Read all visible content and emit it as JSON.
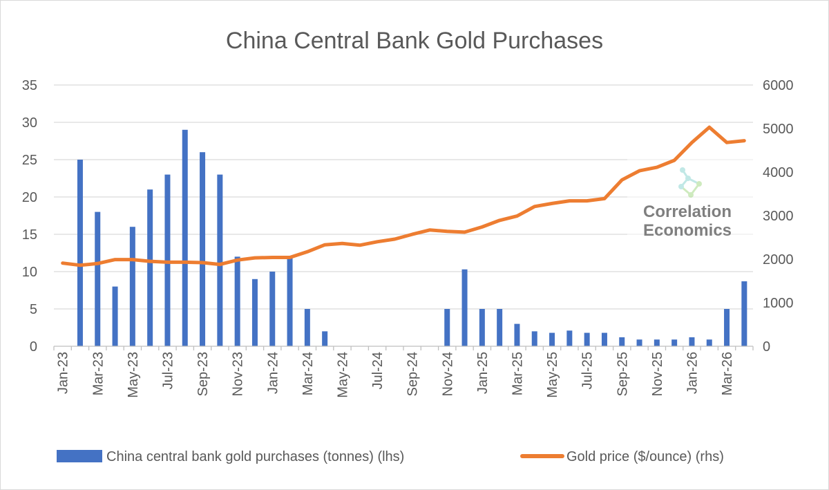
{
  "chart_data": {
    "type": "bar+line",
    "title": "China Central Bank Gold Purchases",
    "x": [
      "Jan-23",
      "Feb-23",
      "Mar-23",
      "Apr-23",
      "May-23",
      "Jun-23",
      "Jul-23",
      "Aug-23",
      "Sep-23",
      "Oct-23",
      "Nov-23",
      "Dec-23",
      "Jan-24",
      "Feb-24",
      "Mar-24",
      "Apr-24",
      "May-24",
      "Jun-24",
      "Jul-24",
      "Aug-24",
      "Sep-24",
      "Oct-24",
      "Nov-24",
      "Dec-24",
      "Jan-25",
      "Feb-25",
      "Mar-25",
      "Apr-25",
      "May-25",
      "Jun-25",
      "Jul-25",
      "Aug-25",
      "Sep-25",
      "Oct-25",
      "Nov-25",
      "Dec-25",
      "Jan-26",
      "Feb-26",
      "Mar-26",
      "Apr-26"
    ],
    "x_tick_labels": [
      "Jan-23",
      "Mar-23",
      "May-23",
      "Jul-23",
      "Sep-23",
      "Nov-23",
      "Jan-24",
      "Mar-24",
      "May-24",
      "Jul-24",
      "Sep-24",
      "Nov-24",
      "Jan-25",
      "Mar-25",
      "May-25",
      "Jul-25",
      "Sep-25",
      "Nov-25",
      "Jan-26",
      "Mar-26"
    ],
    "series": [
      {
        "name": "China central bank gold purchases (tonnes) (lhs)",
        "type": "bar",
        "axis": "left",
        "color": "#4472C4",
        "values": [
          0,
          25,
          18,
          8,
          16,
          21,
          23,
          29,
          26,
          23,
          12,
          9,
          10,
          12,
          5,
          2,
          0,
          0,
          0,
          0,
          0,
          0,
          5,
          10.3,
          5,
          5,
          3,
          2,
          1.8,
          2.1,
          1.8,
          1.8,
          1.2,
          0.9,
          0.9,
          0.9,
          1.2,
          0.9,
          5,
          8.7
        ]
      },
      {
        "name": "Gold price ($/ounce) (rhs)",
        "type": "line",
        "axis": "right",
        "color": "#ED7D31",
        "values": [
          1910,
          1860,
          1900,
          1990,
          1990,
          1950,
          1930,
          1930,
          1920,
          1880,
          1980,
          2030,
          2040,
          2040,
          2170,
          2330,
          2360,
          2320,
          2400,
          2460,
          2570,
          2670,
          2640,
          2620,
          2740,
          2890,
          2990,
          3210,
          3280,
          3340,
          3340,
          3390,
          3820,
          4030,
          4110,
          4270,
          4680,
          5030,
          4680,
          4720
        ]
      }
    ],
    "y_left": {
      "min": 0,
      "max": 35,
      "ticks": [
        0,
        5,
        10,
        15,
        20,
        25,
        30,
        35
      ]
    },
    "y_right": {
      "min": 0,
      "max": 6000,
      "ticks": [
        0,
        1000,
        2000,
        3000,
        4000,
        5000,
        6000
      ]
    },
    "grid": true,
    "legend_position": "bottom"
  },
  "watermark": {
    "line1": "Correlation",
    "line2": "Economics",
    "icon": "molecule-logo-icon"
  }
}
